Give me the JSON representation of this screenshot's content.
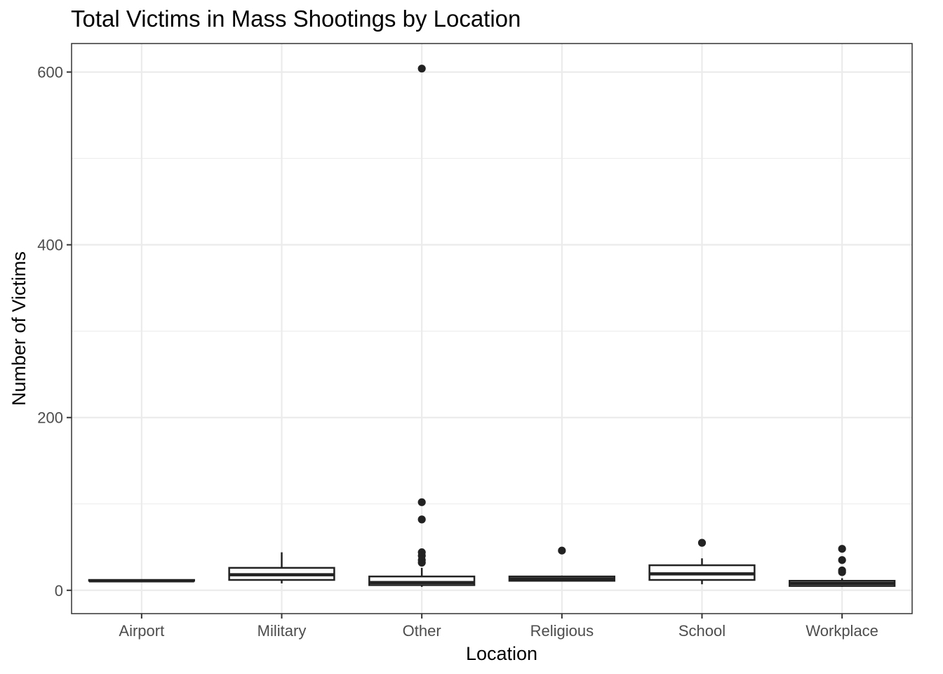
{
  "chart_data": {
    "type": "boxplot",
    "title": "Total Victims in Mass Shootings by Location",
    "xlabel": "Location",
    "ylabel": "Number of Victims",
    "ylim": [
      -27,
      633
    ],
    "yticks": [
      0,
      200,
      400,
      600
    ],
    "y_minor_gridlines": [
      100,
      300,
      500
    ],
    "grid": true,
    "legend": "none",
    "colors": {
      "box_stroke": "#222222",
      "box_fill": "#ffffff",
      "grid": "#ebebeb",
      "border": "#333333"
    },
    "categories": [
      "Airport",
      "Military",
      "Other",
      "Religious",
      "School",
      "Workplace"
    ],
    "boxes": [
      {
        "category": "Airport",
        "whisker_low": 11,
        "q1": 11,
        "median": 11,
        "q3": 12,
        "whisker_high": 12,
        "outliers": []
      },
      {
        "category": "Military",
        "whisker_low": 8,
        "q1": 12,
        "median": 18,
        "q3": 26,
        "whisker_high": 44,
        "outliers": []
      },
      {
        "category": "Other",
        "whisker_low": 4,
        "q1": 6,
        "median": 9,
        "q3": 16,
        "whisker_high": 26,
        "outliers": [
          32,
          35,
          40,
          44,
          82,
          102,
          604
        ]
      },
      {
        "category": "Religious",
        "whisker_low": 10,
        "q1": 11,
        "median": 13,
        "q3": 16,
        "whisker_high": 17,
        "outliers": [
          46
        ]
      },
      {
        "category": "School",
        "whisker_low": 7,
        "q1": 12,
        "median": 19,
        "q3": 29,
        "whisker_high": 37,
        "outliers": [
          55
        ]
      },
      {
        "category": "Workplace",
        "whisker_low": 4,
        "q1": 5,
        "median": 8,
        "q3": 11,
        "whisker_high": 14,
        "outliers": [
          21,
          23,
          35,
          48
        ]
      }
    ]
  }
}
